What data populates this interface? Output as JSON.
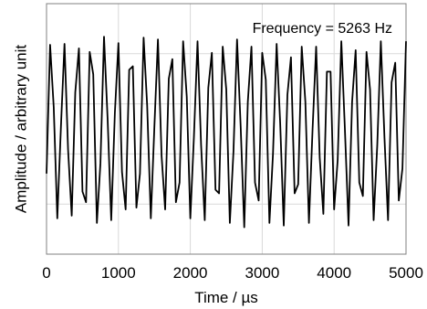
{
  "chart_data": {
    "type": "line",
    "title": "",
    "xlabel": "Time / µs",
    "ylabel": "Amplitude / arbitrary unit",
    "xlim": [
      0,
      5000
    ],
    "ylim": [
      -1.4,
      1.4
    ],
    "x_ticks": [
      "0",
      "1000",
      "2000",
      "3000",
      "4000",
      "5000"
    ],
    "x_tick_values": [
      0,
      1000,
      2000,
      3000,
      4000,
      5000
    ],
    "y_tick_labels_shown": false,
    "grid": true,
    "legend": "none",
    "annotation": "Frequency = 5263 Hz",
    "frequency_hz": 5263,
    "series": [
      {
        "line_color": "#000000",
        "x": [
          0,
          50,
          100,
          150,
          200,
          250,
          300,
          350,
          400,
          450,
          500,
          550,
          600,
          650,
          700,
          750,
          800,
          850,
          900,
          950,
          1000,
          1050,
          1100,
          1150,
          1200,
          1250,
          1300,
          1350,
          1400,
          1450,
          1500,
          1550,
          1600,
          1650,
          1700,
          1750,
          1800,
          1850,
          1900,
          1950,
          2000,
          2050,
          2100,
          2150,
          2200,
          2250,
          2300,
          2350,
          2400,
          2450,
          2500,
          2550,
          2600,
          2650,
          2700,
          2750,
          2800,
          2850,
          2900,
          2950,
          3000,
          3050,
          3100,
          3150,
          3200,
          3250,
          3300,
          3350,
          3400,
          3450,
          3500,
          3550,
          3600,
          3650,
          3700,
          3750,
          3800,
          3850,
          3900,
          3950,
          4000,
          4050,
          4100,
          4150,
          4200,
          4250,
          4300,
          4350,
          4400,
          4450,
          4500,
          4550,
          4600,
          4650,
          4700,
          4750,
          4800,
          4850,
          4900,
          4950,
          5000
        ],
        "y": [
          -0.5,
          0.94,
          0.24,
          -1.0,
          0.03,
          0.95,
          -0.23,
          -0.97,
          0.41,
          0.9,
          -0.7,
          -0.82,
          0.86,
          0.61,
          -1.05,
          -0.38,
          1.03,
          0.1,
          -1.02,
          0.18,
          0.96,
          -0.48,
          -0.9,
          0.66,
          0.7,
          -0.88,
          -0.5,
          1.02,
          0.26,
          -1.0,
          0.02,
          1.0,
          -0.3,
          -0.9,
          0.56,
          0.78,
          -0.82,
          -0.6,
          0.98,
          0.36,
          -1.0,
          -0.1,
          0.98,
          -0.18,
          -1.02,
          0.46,
          0.85,
          -0.68,
          -0.72,
          0.92,
          0.44,
          -1.05,
          -0.25,
          1.0,
          0.02,
          -1.1,
          0.3,
          0.92,
          -0.6,
          -0.8,
          0.85,
          0.55,
          -1.05,
          -0.28,
          0.95,
          0.06,
          -1.08,
          0.38,
          0.8,
          -0.72,
          -0.62,
          0.92,
          0.3,
          -1.05,
          0.0,
          0.92,
          -0.32,
          -0.95,
          0.64,
          0.64,
          -0.9,
          -0.35,
          0.98,
          0.0,
          -1.08,
          0.3,
          0.88,
          -0.6,
          -0.75,
          0.86,
          0.44,
          -1.02,
          -0.18,
          0.98,
          -0.1,
          -1.02,
          0.52,
          0.74,
          -0.8,
          -0.44,
          0.98
        ]
      }
    ]
  }
}
